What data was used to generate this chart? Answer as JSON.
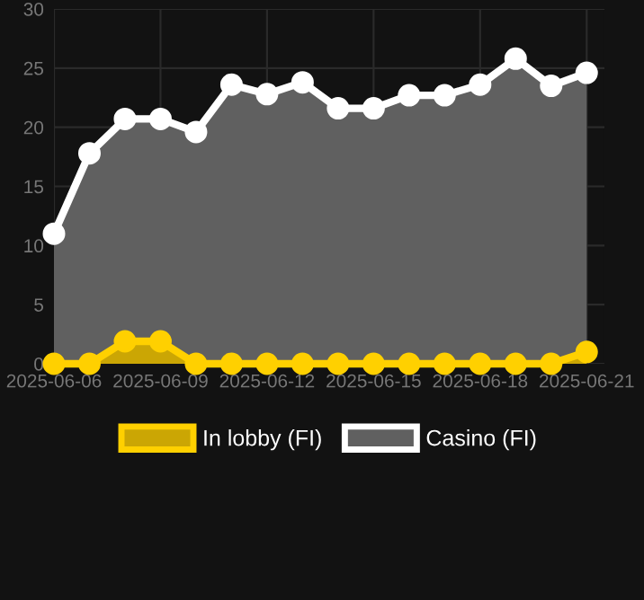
{
  "chart_data": {
    "type": "area",
    "x": [
      "2025-06-06",
      "2025-06-07",
      "2025-06-08",
      "2025-06-09",
      "2025-06-10",
      "2025-06-11",
      "2025-06-12",
      "2025-06-13",
      "2025-06-14",
      "2025-06-15",
      "2025-06-16",
      "2025-06-17",
      "2025-06-18",
      "2025-06-19",
      "2025-06-20",
      "2025-06-21"
    ],
    "series": [
      {
        "name": "In lobby (FI)",
        "color": "#ffd000",
        "values": [
          0,
          0,
          1.9,
          1.9,
          0,
          0,
          0,
          0,
          0,
          0,
          0,
          0,
          0,
          0,
          0,
          1.0
        ]
      },
      {
        "name": "Casino (FI)",
        "color": "#ffffff",
        "values": [
          11,
          17.8,
          20.7,
          20.7,
          19.6,
          23.6,
          22.8,
          23.8,
          21.6,
          21.6,
          22.7,
          22.7,
          23.6,
          25.8,
          23.5,
          24.6
        ]
      }
    ],
    "xlim": [
      "2025-06-06",
      "2025-06-21T12:00"
    ],
    "xticks": [
      {
        "value": "2025-06-06",
        "label": "2025-06-06"
      },
      {
        "value": "2025-06-09",
        "label": "2025-06-09"
      },
      {
        "value": "2025-06-12",
        "label": "2025-06-12"
      },
      {
        "value": "2025-06-15",
        "label": "2025-06-15"
      },
      {
        "value": "2025-06-18",
        "label": "2025-06-18"
      },
      {
        "value": "2025-06-21",
        "label": "2025-06-21"
      }
    ],
    "ylim": [
      0,
      30
    ],
    "yticks": [
      0,
      5,
      10,
      15,
      20,
      25,
      30
    ],
    "grid": true,
    "legend": "bottom",
    "marker": "circle",
    "line_style": "solid"
  }
}
